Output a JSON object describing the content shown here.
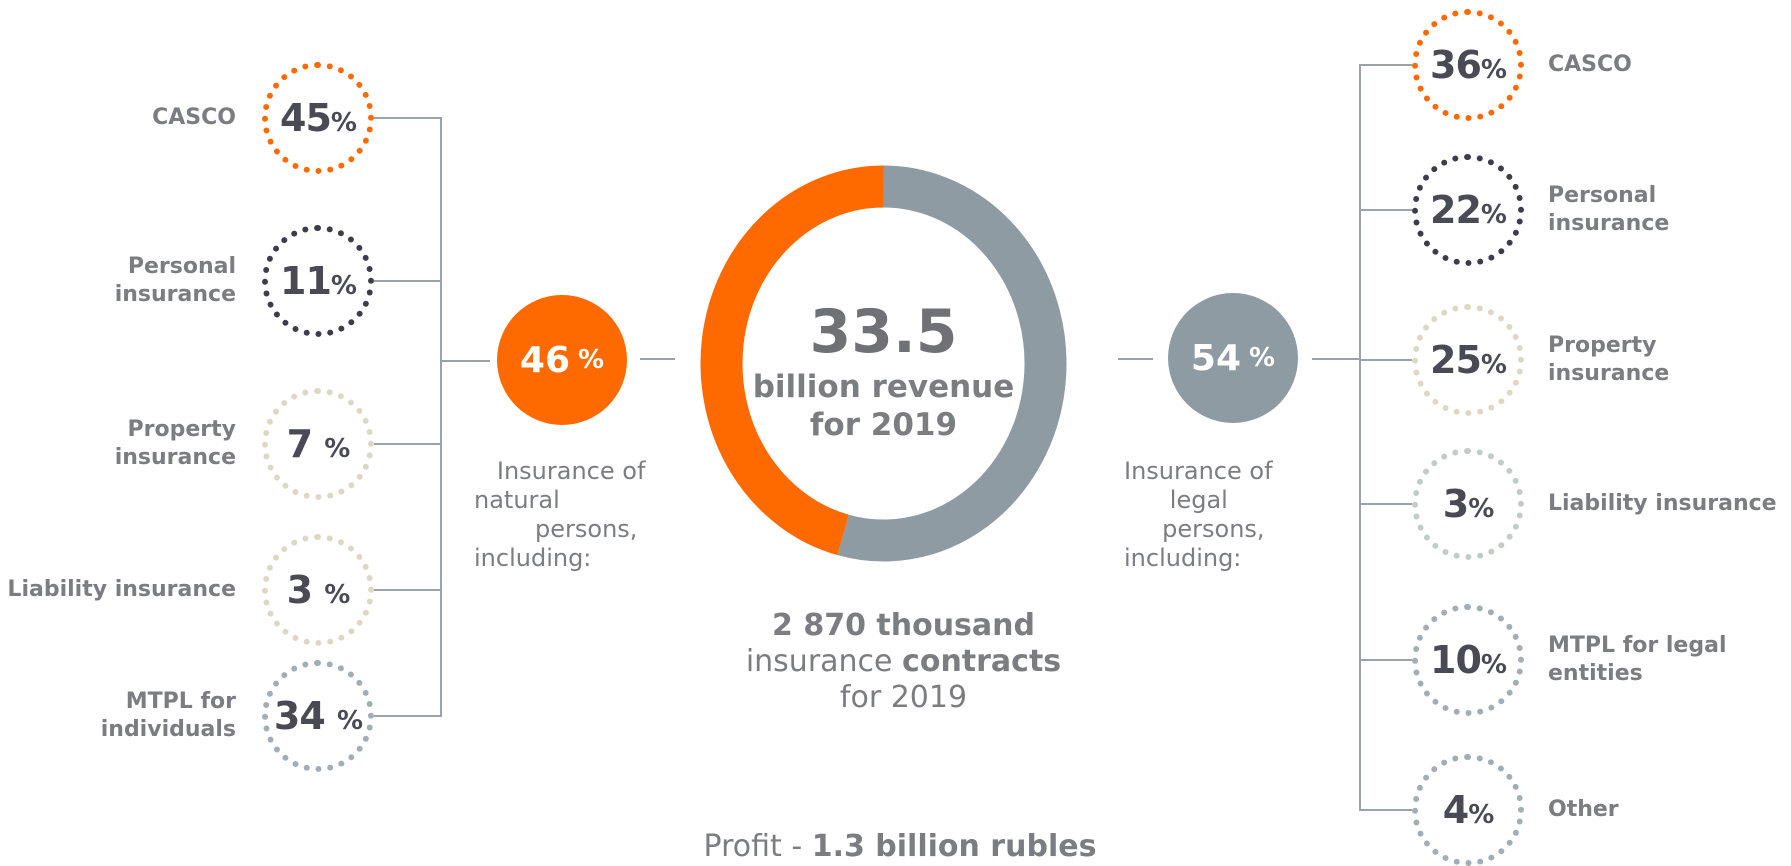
{
  "colors": {
    "orange": "#ff6a00",
    "gray": "#8f9ba2",
    "dark": "#3c3d48",
    "beige": "#dcd8c4",
    "sage": "#c2cbc5",
    "blue_gray": "#a2aeb3"
  },
  "center": {
    "value": "33.5",
    "line1": "billion revenue",
    "line2": "for 2019",
    "contracts_bold": "2 870 thousand",
    "contracts_plain": "insurance ",
    "contracts_bold2": "contracts",
    "contracts_year": "for 2019",
    "profit_plain": "Profit - ",
    "profit_bold": "1.3 billion rubles"
  },
  "chart_data": {
    "type": "pie",
    "categories": [
      "Insurance of natural persons",
      "Insurance of legal persons"
    ],
    "values": [
      46,
      54
    ],
    "colors": [
      "#ff6a00",
      "#8f9ba2"
    ]
  },
  "natural": {
    "pct": "46",
    "pct_sign": "%",
    "desc": "   Insurance of\nnatural\n        persons,\nincluding:",
    "items": [
      {
        "label": "CASCO",
        "pct": "45",
        "sign": "%",
        "color": "#ff6a00"
      },
      {
        "label": "Personal\ninsurance",
        "pct": "11",
        "sign": "%",
        "color": "#3c3d48"
      },
      {
        "label": "Property\ninsurance",
        "pct": "7 ",
        "sign": "%",
        "color": "#dcd8c4"
      },
      {
        "label": "Liability insurance",
        "pct": "3 ",
        "sign": "%",
        "color": "#dcd8c4"
      },
      {
        "label": "MTPL for\nindividuals",
        "pct": "34 ",
        "sign": "%",
        "color": "#a2aeb3"
      }
    ]
  },
  "legal": {
    "pct": "54",
    "pct_sign": "%",
    "desc": "Insurance of\n      legal\n     persons,\nincluding:",
    "items": [
      {
        "label": "CASCO",
        "pct": "36",
        "sign": "%",
        "color": "#ff6a00"
      },
      {
        "label": "Personal\ninsurance",
        "pct": "22",
        "sign": "%",
        "color": "#3c3d48"
      },
      {
        "label": "Property\ninsurance",
        "pct": "25",
        "sign": "%",
        "color": "#dcd8c4"
      },
      {
        "label": "Liability insurance",
        "pct": "3",
        "sign": "%",
        "color": "#c2cbc5"
      },
      {
        "label": "MTPL for legal\nentities",
        "pct": "10",
        "sign": "%",
        "color": "#a2aeb3"
      },
      {
        "label": "Other",
        "pct": "4",
        "sign": "%",
        "color": "#a2aeb3"
      }
    ]
  }
}
